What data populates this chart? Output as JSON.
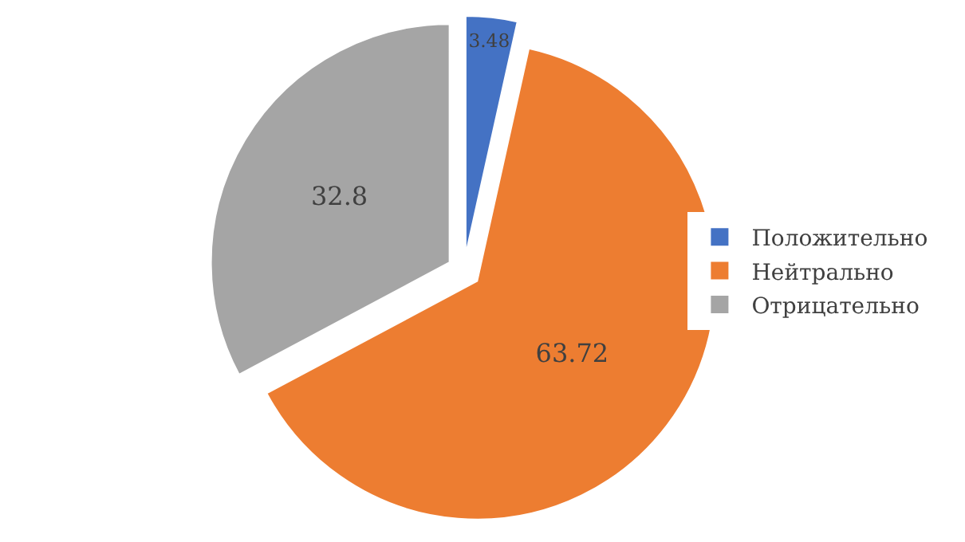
{
  "chart_data": {
    "type": "pie",
    "categories": [
      "Положительно",
      "Нейтрально",
      "Отрицательно"
    ],
    "values": [
      3.48,
      63.72,
      32.8
    ],
    "colors": [
      "#4472c4",
      "#ed7d31",
      "#a5a5a5"
    ],
    "data_labels": true,
    "legend": "right"
  }
}
